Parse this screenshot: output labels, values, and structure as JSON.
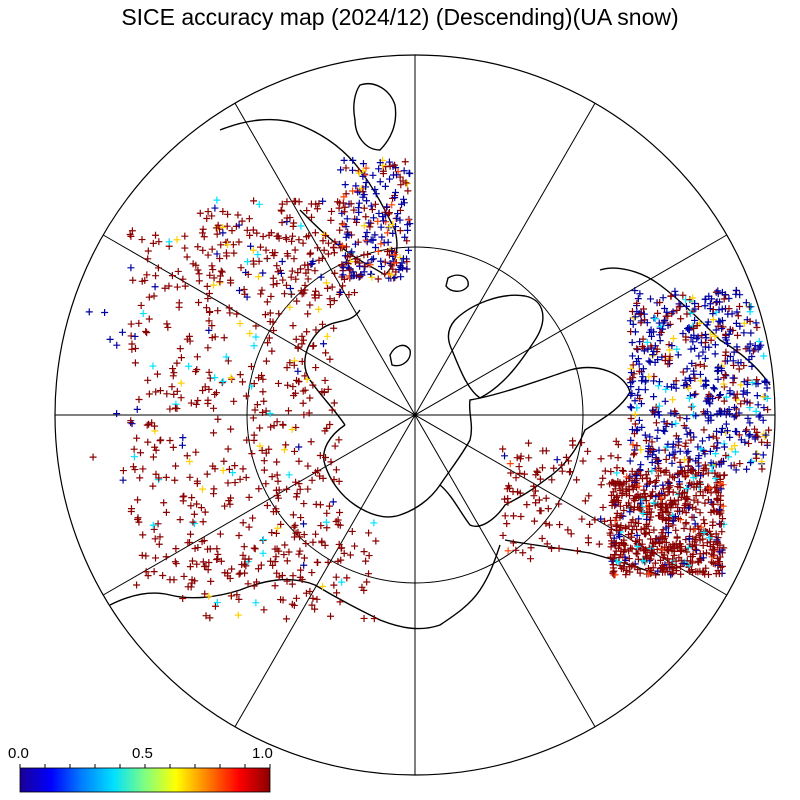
{
  "title": "SICE accuracy map (2024/12) (Descending)(UA snow)",
  "projection": "north polar stereographic",
  "graticule": {
    "meridian_spacing_deg": 30,
    "inner_latitude_circle": true
  },
  "colorbar": {
    "min_label": "0.0",
    "mid_label": "0.5",
    "max_label": "1.0",
    "colors": [
      "#1a0096",
      "#0000ff",
      "#0080ff",
      "#00e0ff",
      "#80ff80",
      "#ffff00",
      "#ff8000",
      "#ff0000",
      "#8b0000"
    ]
  },
  "marker_colors": {
    "high": "#8b0000",
    "mid_high": "#ff4000",
    "mid": "#ffd000",
    "mid_low": "#00e0ff",
    "low": "#0000a0"
  }
}
